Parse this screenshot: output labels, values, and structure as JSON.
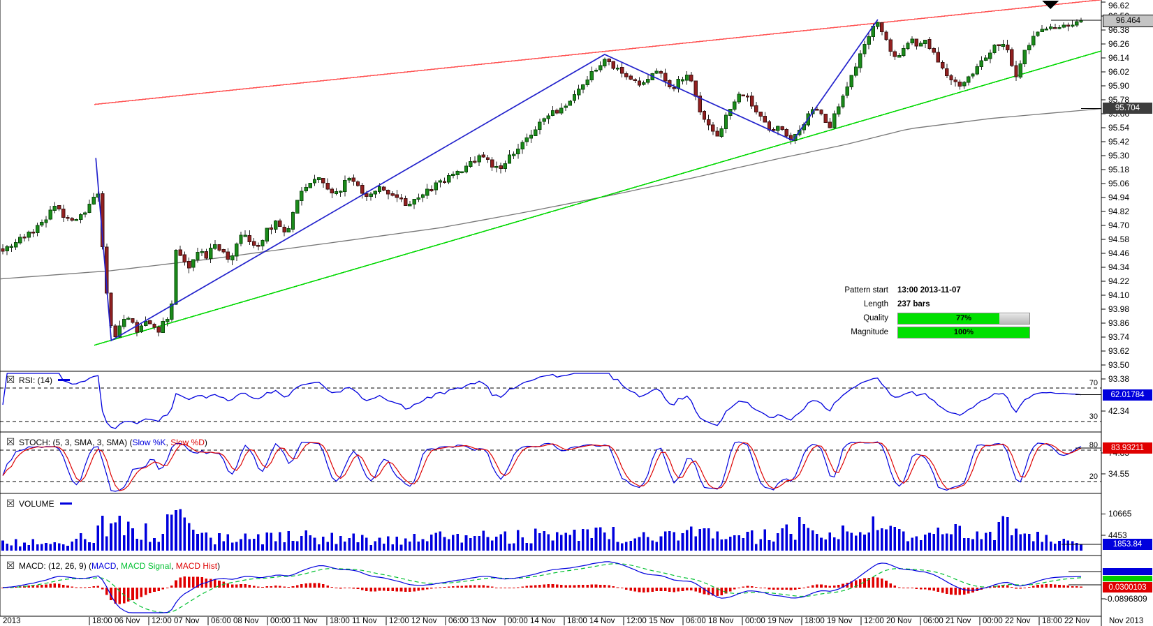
{
  "chart_data": {
    "type": "candlestick+indicators",
    "price_axis": {
      "ticks": [
        "96.62",
        "96.50",
        "96.38",
        "96.26",
        "96.14",
        "96.02",
        "95.90",
        "95.78",
        "95.66",
        "95.54",
        "95.42",
        "95.30",
        "95.18",
        "95.06",
        "94.94",
        "94.82",
        "94.70",
        "94.58",
        "94.46",
        "94.34",
        "94.22",
        "94.10",
        "93.98",
        "93.86",
        "93.74",
        "93.62",
        "93.50",
        "93.38"
      ],
      "tick_step": 0.12,
      "current_price": "96.464",
      "ma_price": "95.704"
    },
    "price_path": [
      [
        0,
        94.5
      ],
      [
        0.015,
        94.58
      ],
      [
        0.03,
        94.66
      ],
      [
        0.042,
        94.8
      ],
      [
        0.048,
        94.86
      ],
      [
        0.055,
        94.78
      ],
      [
        0.063,
        94.72
      ],
      [
        0.07,
        94.78
      ],
      [
        0.076,
        94.84
      ],
      [
        0.082,
        94.92
      ],
      [
        0.086,
        95.02
      ],
      [
        0.088,
        94.95
      ],
      [
        0.092,
        94.3
      ],
      [
        0.097,
        93.95
      ],
      [
        0.101,
        93.72
      ],
      [
        0.106,
        93.8
      ],
      [
        0.112,
        93.95
      ],
      [
        0.118,
        93.85
      ],
      [
        0.124,
        93.78
      ],
      [
        0.13,
        93.9
      ],
      [
        0.136,
        93.86
      ],
      [
        0.142,
        93.8
      ],
      [
        0.148,
        93.92
      ],
      [
        0.153,
        93.88
      ],
      [
        0.157,
        94.5
      ],
      [
        0.163,
        94.42
      ],
      [
        0.17,
        94.35
      ],
      [
        0.178,
        94.5
      ],
      [
        0.185,
        94.42
      ],
      [
        0.192,
        94.55
      ],
      [
        0.2,
        94.48
      ],
      [
        0.208,
        94.4
      ],
      [
        0.216,
        94.62
      ],
      [
        0.224,
        94.58
      ],
      [
        0.232,
        94.52
      ],
      [
        0.24,
        94.65
      ],
      [
        0.248,
        94.72
      ],
      [
        0.258,
        94.6
      ],
      [
        0.266,
        94.88
      ],
      [
        0.273,
        95.02
      ],
      [
        0.28,
        95.08
      ],
      [
        0.287,
        95.12
      ],
      [
        0.295,
        95.0
      ],
      [
        0.304,
        94.97
      ],
      [
        0.31,
        95.05
      ],
      [
        0.317,
        95.12
      ],
      [
        0.325,
        95.02
      ],
      [
        0.333,
        94.95
      ],
      [
        0.342,
        95.02
      ],
      [
        0.35,
        94.98
      ],
      [
        0.36,
        94.95
      ],
      [
        0.368,
        94.86
      ],
      [
        0.376,
        94.95
      ],
      [
        0.385,
        94.98
      ],
      [
        0.395,
        95.05
      ],
      [
        0.405,
        95.1
      ],
      [
        0.412,
        95.14
      ],
      [
        0.42,
        95.2
      ],
      [
        0.428,
        95.26
      ],
      [
        0.437,
        95.3
      ],
      [
        0.445,
        95.22
      ],
      [
        0.453,
        95.16
      ],
      [
        0.46,
        95.28
      ],
      [
        0.469,
        95.34
      ],
      [
        0.478,
        95.45
      ],
      [
        0.487,
        95.55
      ],
      [
        0.494,
        95.62
      ],
      [
        0.503,
        95.68
      ],
      [
        0.513,
        95.74
      ],
      [
        0.52,
        95.82
      ],
      [
        0.527,
        95.9
      ],
      [
        0.535,
        96.0
      ],
      [
        0.543,
        96.08
      ],
      [
        0.549,
        96.14
      ],
      [
        0.556,
        96.06
      ],
      [
        0.564,
        96.0
      ],
      [
        0.572,
        95.96
      ],
      [
        0.58,
        95.9
      ],
      [
        0.588,
        95.98
      ],
      [
        0.596,
        96.05
      ],
      [
        0.602,
        95.95
      ],
      [
        0.609,
        95.88
      ],
      [
        0.617,
        95.95
      ],
      [
        0.625,
        96.0
      ],
      [
        0.632,
        95.75
      ],
      [
        0.638,
        95.62
      ],
      [
        0.645,
        95.52
      ],
      [
        0.652,
        95.48
      ],
      [
        0.658,
        95.62
      ],
      [
        0.665,
        95.76
      ],
      [
        0.672,
        95.85
      ],
      [
        0.678,
        95.8
      ],
      [
        0.685,
        95.7
      ],
      [
        0.692,
        95.6
      ],
      [
        0.7,
        95.52
      ],
      [
        0.707,
        95.55
      ],
      [
        0.714,
        95.48
      ],
      [
        0.72,
        95.44
      ],
      [
        0.727,
        95.55
      ],
      [
        0.734,
        95.65
      ],
      [
        0.74,
        95.7
      ],
      [
        0.747,
        95.62
      ],
      [
        0.753,
        95.56
      ],
      [
        0.758,
        95.65
      ],
      [
        0.763,
        95.78
      ],
      [
        0.77,
        95.92
      ],
      [
        0.776,
        96.05
      ],
      [
        0.783,
        96.2
      ],
      [
        0.79,
        96.35
      ],
      [
        0.797,
        96.46
      ],
      [
        0.803,
        96.32
      ],
      [
        0.808,
        96.2
      ],
      [
        0.814,
        96.12
      ],
      [
        0.82,
        96.22
      ],
      [
        0.827,
        96.3
      ],
      [
        0.833,
        96.24
      ],
      [
        0.84,
        96.28
      ],
      [
        0.846,
        96.2
      ],
      [
        0.852,
        96.1
      ],
      [
        0.859,
        96.02
      ],
      [
        0.866,
        95.95
      ],
      [
        0.872,
        95.9
      ],
      [
        0.879,
        95.98
      ],
      [
        0.886,
        96.05
      ],
      [
        0.893,
        96.12
      ],
      [
        0.9,
        96.2
      ],
      [
        0.906,
        96.26
      ],
      [
        0.913,
        96.28
      ],
      [
        0.918,
        96.1
      ],
      [
        0.922,
        95.97
      ],
      [
        0.927,
        96.12
      ],
      [
        0.932,
        96.25
      ],
      [
        0.938,
        96.3
      ],
      [
        0.945,
        96.36
      ],
      [
        0.955,
        96.4
      ],
      [
        0.965,
        96.42
      ],
      [
        0.975,
        96.44
      ],
      [
        0.982,
        96.464
      ]
    ],
    "ma_path": [
      [
        0,
        94.24
      ],
      [
        0.1,
        94.31
      ],
      [
        0.19,
        94.41
      ],
      [
        0.3,
        94.55
      ],
      [
        0.4,
        94.68
      ],
      [
        0.475,
        94.81
      ],
      [
        0.55,
        94.95
      ],
      [
        0.625,
        95.1
      ],
      [
        0.7,
        95.26
      ],
      [
        0.77,
        95.4
      ],
      [
        0.825,
        95.53
      ],
      [
        0.9,
        95.62
      ],
      [
        1,
        95.704
      ]
    ],
    "trendlines": {
      "resistance": [
        [
          0.0856,
          95.74
        ],
        [
          1,
          96.64
        ]
      ],
      "support": [
        [
          0.0856,
          93.67
        ],
        [
          1,
          96.2
        ]
      ],
      "zigzag": [
        [
          0.087,
          95.28
        ],
        [
          0.101,
          93.71
        ],
        [
          0.549,
          96.17
        ],
        [
          0.72,
          95.43
        ],
        [
          0.797,
          96.47
        ]
      ]
    },
    "pattern": {
      "rows": [
        {
          "label": "Pattern start",
          "value": "13:00 2013-11-07"
        },
        {
          "label": "Length",
          "value": "237 bars"
        }
      ],
      "bars": [
        {
          "label": "Quality",
          "pct": 77,
          "text": "77%"
        },
        {
          "label": "Magnitude",
          "pct": 100,
          "text": "100%"
        }
      ]
    },
    "rsi": {
      "title": "RSI: (14)",
      "levels": [
        "70",
        "30"
      ],
      "level_values": [
        70,
        30
      ],
      "side_labels": [
        "42.34"
      ],
      "side_values": [
        42.34
      ],
      "value": "62.01784"
    },
    "stoch": {
      "title_prefix": "STOCH: (5, 3, SMA, 3, SMA) (",
      "k_label": "Slow %K",
      "separator": ", ",
      "d_label": "Slow %D",
      "title_suffix": ")",
      "levels": [
        "80",
        "20"
      ],
      "level_values": [
        80,
        20
      ],
      "side_labels": [
        "74.85",
        "34.55"
      ],
      "side_values": [
        74.85,
        34.55
      ],
      "value": "83.93211"
    },
    "volume": {
      "title": "VOLUME",
      "side_labels": [
        "10665",
        "4453"
      ],
      "side_values": [
        10665,
        4453
      ],
      "value": "1853.84",
      "envelope": [
        [
          0,
          4200
        ],
        [
          0.03,
          3400
        ],
        [
          0.06,
          3600
        ],
        [
          0.082,
          7000
        ],
        [
          0.09,
          10000
        ],
        [
          0.1,
          13500
        ],
        [
          0.11,
          9500
        ],
        [
          0.13,
          8000
        ],
        [
          0.145,
          7000
        ],
        [
          0.157,
          15000
        ],
        [
          0.17,
          8500
        ],
        [
          0.19,
          6000
        ],
        [
          0.22,
          5000
        ],
        [
          0.25,
          5500
        ],
        [
          0.28,
          6200
        ],
        [
          0.3,
          5600
        ],
        [
          0.33,
          5200
        ],
        [
          0.36,
          4700
        ],
        [
          0.385,
          5400
        ],
        [
          0.41,
          6000
        ],
        [
          0.437,
          7000
        ],
        [
          0.46,
          5700
        ],
        [
          0.49,
          6700
        ],
        [
          0.52,
          6000
        ],
        [
          0.549,
          7300
        ],
        [
          0.58,
          6200
        ],
        [
          0.61,
          5700
        ],
        [
          0.637,
          7800
        ],
        [
          0.652,
          9100
        ],
        [
          0.67,
          6800
        ],
        [
          0.69,
          6000
        ],
        [
          0.71,
          6800
        ],
        [
          0.727,
          9900
        ],
        [
          0.74,
          8300
        ],
        [
          0.755,
          7300
        ],
        [
          0.77,
          8800
        ],
        [
          0.785,
          7500
        ],
        [
          0.8,
          13500
        ],
        [
          0.815,
          8100
        ],
        [
          0.83,
          6200
        ],
        [
          0.845,
          7000
        ],
        [
          0.86,
          6500
        ],
        [
          0.875,
          9600
        ],
        [
          0.89,
          8600
        ],
        [
          0.9,
          6500
        ],
        [
          0.913,
          12200
        ],
        [
          0.925,
          11200
        ],
        [
          0.94,
          6800
        ],
        [
          0.955,
          4700
        ],
        [
          0.97,
          3400
        ],
        [
          0.985,
          2400
        ]
      ]
    },
    "macd": {
      "title_prefix": "MACD: (12, 26, 9) (",
      "macd_label": "MACD",
      "sep1": ", ",
      "signal_label": "MACD Signal",
      "sep2": ", ",
      "hist_label": "MACD Hist",
      "title_suffix": ")",
      "side_labels": [
        "-0.0896809"
      ],
      "side_values": [
        -0.0896809
      ],
      "value": "0.0300103"
    },
    "time_axis": {
      "left_label": "2013",
      "right_label": "Nov 2013",
      "labels": [
        "18:00 06 Nov",
        "12:00 07 Nov",
        "06:00 08 Nov",
        "00:00 11 Nov",
        "18:00 11 Nov",
        "12:00 12 Nov",
        "06:00 13 Nov",
        "00:00 14 Nov",
        "18:00 14 Nov",
        "12:00 15 Nov",
        "06:00 18 Nov",
        "00:00 19 Nov",
        "18:00 19 Nov",
        "12:00 20 Nov",
        "06:00 21 Nov",
        "00:00 22 Nov",
        "18:00 22 Nov"
      ]
    }
  },
  "colors": {
    "up": "#1a8c1a",
    "up_dark": "#0a4a0a",
    "down": "#932020",
    "down_dark": "#401010",
    "wick": "#222222",
    "resistance": "#ff5555",
    "support": "#00d800",
    "zigzag": "#2222cc",
    "ma": "#777777",
    "indicator_blue": "#0000dd",
    "indicator_red": "#dd0000",
    "signal_green": "#00c030",
    "hist_red": "#e00000",
    "volume_blue": "#0000dd",
    "box_blue_bg": "#0000dd",
    "box_red_bg": "#e00000",
    "box_green_bg": "#00cc00",
    "price_box_bg": "#c4c4c4",
    "ma_box_bg": "#3d3d3d",
    "progress_green": "#00e000",
    "grid_dash": "#000000",
    "arrow": "#000000"
  }
}
